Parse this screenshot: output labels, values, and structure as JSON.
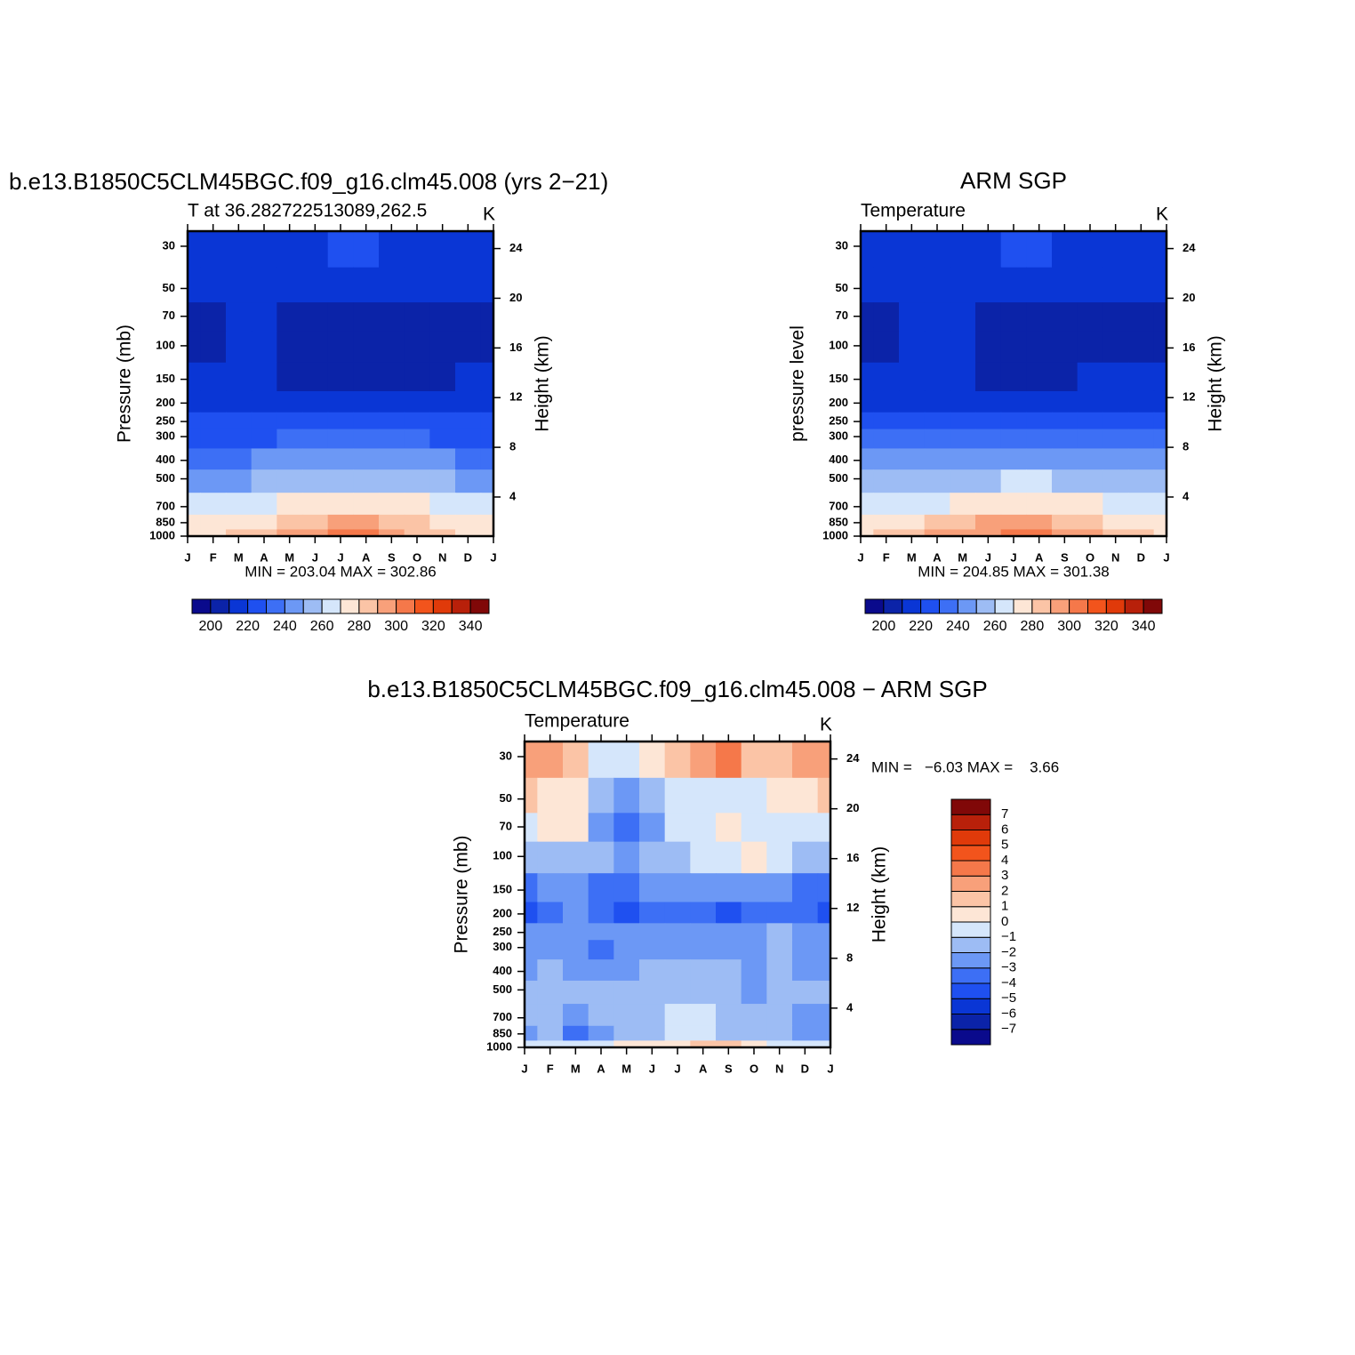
{
  "chart_data": [
    {
      "type": "contour",
      "title": "b.e13.B1850C5CLM45BGC.f09_g16.clm45.008 (yrs 2−21)",
      "left_string": "T at 36.282722513089,262.5",
      "right_string": "K",
      "categories": [
        "J",
        "F",
        "M",
        "A",
        "M",
        "J",
        "J",
        "A",
        "S",
        "O",
        "N",
        "D",
        "J"
      ],
      "ylabel": "Pressure (mb)",
      "y_scale": "log",
      "ylim": [
        1000,
        25
      ],
      "yticks": [
        30,
        50,
        70,
        100,
        150,
        200,
        250,
        300,
        400,
        500,
        700,
        850,
        1000
      ],
      "y2label": "Height (km)",
      "y2lim": [
        0.85,
        25.4
      ],
      "y2ticks": [
        4,
        8,
        12,
        16,
        20,
        24
      ],
      "stats_label": "MIN = 203.04 MAX = 302.86",
      "colorbar": "horizontal",
      "levels": [
        200,
        210,
        220,
        230,
        240,
        250,
        260,
        270,
        280,
        290,
        300,
        310,
        320,
        330,
        340
      ],
      "colorbar_ticks": [
        200,
        220,
        240,
        260,
        280,
        300,
        320,
        340
      ],
      "colors": [
        "#0a0a8c",
        "#0b23a8",
        "#0a36d5",
        "#1f50f0",
        "#3d6ff5",
        "#6c98f5",
        "#9dbcf4",
        "#d5e6fb",
        "#fde6d6",
        "#fbc4a6",
        "#f8a07a",
        "#f5784a",
        "#f2541c",
        "#e03a0a",
        "#b8200a",
        "#800808"
      ],
      "z": [
        [
          215,
          215,
          215,
          216,
          217,
          219,
          221,
          221,
          219,
          217,
          216,
          215,
          215
        ],
        [
          211,
          212,
          213,
          213,
          213,
          214,
          214,
          214,
          213,
          213,
          212,
          211,
          211
        ],
        [
          207,
          208,
          211,
          211,
          209,
          208,
          208,
          208,
          208,
          208,
          208,
          208,
          207
        ],
        [
          207,
          207,
          210,
          212,
          207,
          206,
          205,
          205,
          206,
          206,
          206,
          207,
          207
        ],
        [
          213,
          213,
          213,
          211,
          207,
          206,
          206,
          206,
          206,
          207,
          209,
          212,
          213
        ],
        [
          216,
          216,
          216,
          216,
          215,
          214,
          213,
          213,
          213,
          214,
          215,
          216,
          216
        ],
        [
          222,
          222,
          222,
          222,
          222,
          223,
          224,
          224,
          223,
          222,
          222,
          222,
          222
        ],
        [
          228,
          228,
          229,
          229,
          230,
          231,
          232,
          232,
          231,
          230,
          229,
          228,
          228
        ],
        [
          238,
          238,
          239,
          240,
          242,
          244,
          245,
          245,
          244,
          242,
          240,
          239,
          238
        ],
        [
          248,
          248,
          249,
          251,
          254,
          257,
          258,
          258,
          256,
          253,
          250,
          249,
          248
        ],
        [
          262,
          262,
          264,
          267,
          271,
          275,
          277,
          277,
          274,
          270,
          266,
          263,
          262
        ],
        [
          270,
          271,
          274,
          279,
          284,
          289,
          291,
          291,
          287,
          281,
          276,
          272,
          270
        ],
        [
          276,
          278,
          283,
          288,
          294,
          299,
          302,
          301,
          296,
          289,
          282,
          278,
          276
        ]
      ]
    },
    {
      "type": "contour",
      "title": "ARM SGP",
      "left_string": "Temperature",
      "right_string": "K",
      "categories": [
        "J",
        "F",
        "M",
        "A",
        "M",
        "J",
        "J",
        "A",
        "S",
        "O",
        "N",
        "D",
        "J"
      ],
      "ylabel": "pressure level",
      "y_scale": "log",
      "ylim": [
        1000,
        25
      ],
      "yticks": [
        30,
        50,
        70,
        100,
        150,
        200,
        250,
        300,
        400,
        500,
        700,
        850,
        1000
      ],
      "y2label": "Height (km)",
      "y2lim": [
        0.85,
        25.4
      ],
      "y2ticks": [
        4,
        8,
        12,
        16,
        20,
        24
      ],
      "stats_label": "MIN = 204.85 MAX = 301.38",
      "colorbar": "horizontal",
      "levels": [
        200,
        210,
        220,
        230,
        240,
        250,
        260,
        270,
        280,
        290,
        300,
        310,
        320,
        330,
        340
      ],
      "colorbar_ticks": [
        200,
        220,
        240,
        260,
        280,
        300,
        320,
        340
      ],
      "colors": [
        "#0a0a8c",
        "#0b23a8",
        "#0a36d5",
        "#1f50f0",
        "#3d6ff5",
        "#6c98f5",
        "#9dbcf4",
        "#d5e6fb",
        "#fde6d6",
        "#fbc4a6",
        "#f8a07a",
        "#f5784a",
        "#f2541c",
        "#e03a0a",
        "#b8200a",
        "#800808"
      ],
      "z": [
        [
          214,
          214,
          214,
          215,
          216,
          218,
          220,
          220,
          218,
          216,
          215,
          214,
          214
        ],
        [
          210,
          211,
          211,
          212,
          213,
          213,
          213,
          213,
          213,
          212,
          211,
          210,
          210
        ],
        [
          207,
          207,
          210,
          211,
          210,
          209,
          209,
          209,
          208,
          208,
          208,
          207,
          207
        ],
        [
          207,
          208,
          210,
          211,
          211,
          208,
          206,
          206,
          207,
          207,
          209,
          209,
          207
        ],
        [
          214,
          214,
          214,
          213,
          212,
          209,
          207,
          207,
          208,
          210,
          212,
          214,
          214
        ],
        [
          219,
          219,
          219,
          219,
          218,
          217,
          216,
          216,
          216,
          217,
          218,
          219,
          219
        ],
        [
          225,
          225,
          225,
          225,
          226,
          227,
          227,
          227,
          226,
          225,
          225,
          225,
          225
        ],
        [
          231,
          231,
          231,
          232,
          233,
          234,
          235,
          235,
          234,
          233,
          232,
          231,
          231
        ],
        [
          241,
          241,
          242,
          243,
          245,
          247,
          248,
          248,
          247,
          245,
          243,
          241,
          241
        ],
        [
          251,
          251,
          252,
          254,
          256,
          259,
          261,
          261,
          259,
          256,
          253,
          251,
          251
        ],
        [
          264,
          264,
          266,
          269,
          273,
          277,
          279,
          279,
          276,
          272,
          268,
          265,
          264
        ],
        [
          272,
          273,
          276,
          281,
          286,
          290,
          292,
          292,
          288,
          283,
          278,
          274,
          272
        ],
        [
          278,
          280,
          285,
          290,
          295,
          299,
          301,
          300,
          297,
          290,
          284,
          280,
          278
        ]
      ]
    },
    {
      "type": "contour",
      "title": "b.e13.B1850C5CLM45BGC.f09_g16.clm45.008 − ARM SGP",
      "left_string": "Temperature",
      "right_string": "K",
      "categories": [
        "J",
        "F",
        "M",
        "A",
        "M",
        "J",
        "J",
        "A",
        "S",
        "O",
        "N",
        "D",
        "J"
      ],
      "ylabel": "Pressure (mb)",
      "y_scale": "log",
      "ylim": [
        1000,
        25
      ],
      "yticks": [
        30,
        50,
        70,
        100,
        150,
        200,
        250,
        300,
        400,
        500,
        700,
        850,
        1000
      ],
      "y2label": "Height (km)",
      "y2lim": [
        0.85,
        25.4
      ],
      "y2ticks": [
        4,
        8,
        12,
        16,
        20,
        24
      ],
      "stats_label": "MIN =   −6.03 MAX =    3.66",
      "colorbar": "vertical",
      "levels": [
        -7,
        -6,
        -5,
        -4,
        -3,
        -2,
        -1,
        0,
        1,
        2,
        3,
        4,
        5,
        6,
        7
      ],
      "colorbar_ticks": [
        {
          "value": -7,
          "label": "−7"
        },
        {
          "value": -6,
          "label": "−6"
        },
        {
          "value": -5,
          "label": "−5"
        },
        {
          "value": -4,
          "label": "−4"
        },
        {
          "value": -3,
          "label": "−3"
        },
        {
          "value": -2,
          "label": "−2"
        },
        {
          "value": -1,
          "label": "−1"
        },
        0,
        1,
        2,
        3,
        4,
        5,
        6,
        7
      ],
      "colors": [
        "#0a0a8c",
        "#0b23a8",
        "#0a36d5",
        "#1f50f0",
        "#3d6ff5",
        "#6c98f5",
        "#9dbcf4",
        "#d5e6fb",
        "#fde6d6",
        "#fbc4a6",
        "#f8a07a",
        "#f5784a",
        "#f2541c",
        "#e03a0a",
        "#b8200a",
        "#800808"
      ],
      "z": [
        [
          2.5,
          2.5,
          1.5,
          -0.5,
          -0.5,
          0.5,
          1.5,
          2.5,
          3.5,
          1.5,
          1.5,
          2.5,
          2.5
        ],
        [
          1.5,
          0.5,
          0.5,
          -1.5,
          -2.5,
          -1.5,
          -0.5,
          -0.5,
          -0.5,
          -0.5,
          0.5,
          0.5,
          1.5
        ],
        [
          -0.5,
          0.5,
          0.5,
          -2.5,
          -3.5,
          -2.5,
          -0.5,
          -0.5,
          0.5,
          -0.5,
          -0.5,
          -0.5,
          -0.5
        ],
        [
          -1.5,
          -1.5,
          -1.5,
          -1.5,
          -2.5,
          -1.5,
          -1.5,
          -0.5,
          -0.5,
          0.5,
          -0.5,
          -1.5,
          -1.5
        ],
        [
          -3.5,
          -2.5,
          -2.5,
          -3.5,
          -3.5,
          -2.5,
          -2.5,
          -2.5,
          -2.5,
          -2.5,
          -2.5,
          -3.5,
          -3.5
        ],
        [
          -4.5,
          -3.5,
          -2.5,
          -3.5,
          -4.5,
          -3.5,
          -3.5,
          -3.5,
          -4.5,
          -3.5,
          -3.5,
          -3.5,
          -4.5
        ],
        [
          -2.5,
          -2.5,
          -2.5,
          -2.5,
          -2.5,
          -2.5,
          -2.5,
          -2.5,
          -2.5,
          -2.5,
          -1.5,
          -2.5,
          -2.5
        ],
        [
          -2.5,
          -2.5,
          -2.5,
          -3.5,
          -2.5,
          -2.5,
          -2.5,
          -2.5,
          -2.5,
          -2.5,
          -1.5,
          -2.5,
          -2.5
        ],
        [
          -2.5,
          -1.5,
          -2.5,
          -2.5,
          -2.5,
          -1.5,
          -1.5,
          -1.5,
          -1.5,
          -2.5,
          -1.5,
          -2.5,
          -2.5
        ],
        [
          -1.5,
          -1.5,
          -1.5,
          -1.5,
          -1.5,
          -1.5,
          -1.5,
          -1.5,
          -1.5,
          -2.5,
          -1.5,
          -1.5,
          -1.5
        ],
        [
          -1.5,
          -1.5,
          -2.5,
          -1.5,
          -1.5,
          -1.5,
          -0.5,
          -0.5,
          -1.5,
          -1.5,
          -1.5,
          -2.5,
          -2.5
        ],
        [
          -2.5,
          -1.5,
          -3.5,
          -2.5,
          -1.5,
          -1.5,
          -0.5,
          -0.5,
          -1.5,
          -1.5,
          -1.5,
          -2.5,
          -2.5
        ],
        [
          -0.5,
          -0.5,
          -0.5,
          -0.5,
          0.5,
          0.5,
          0.5,
          1.5,
          1.5,
          0.5,
          -0.5,
          -0.5,
          -0.5
        ]
      ]
    }
  ]
}
